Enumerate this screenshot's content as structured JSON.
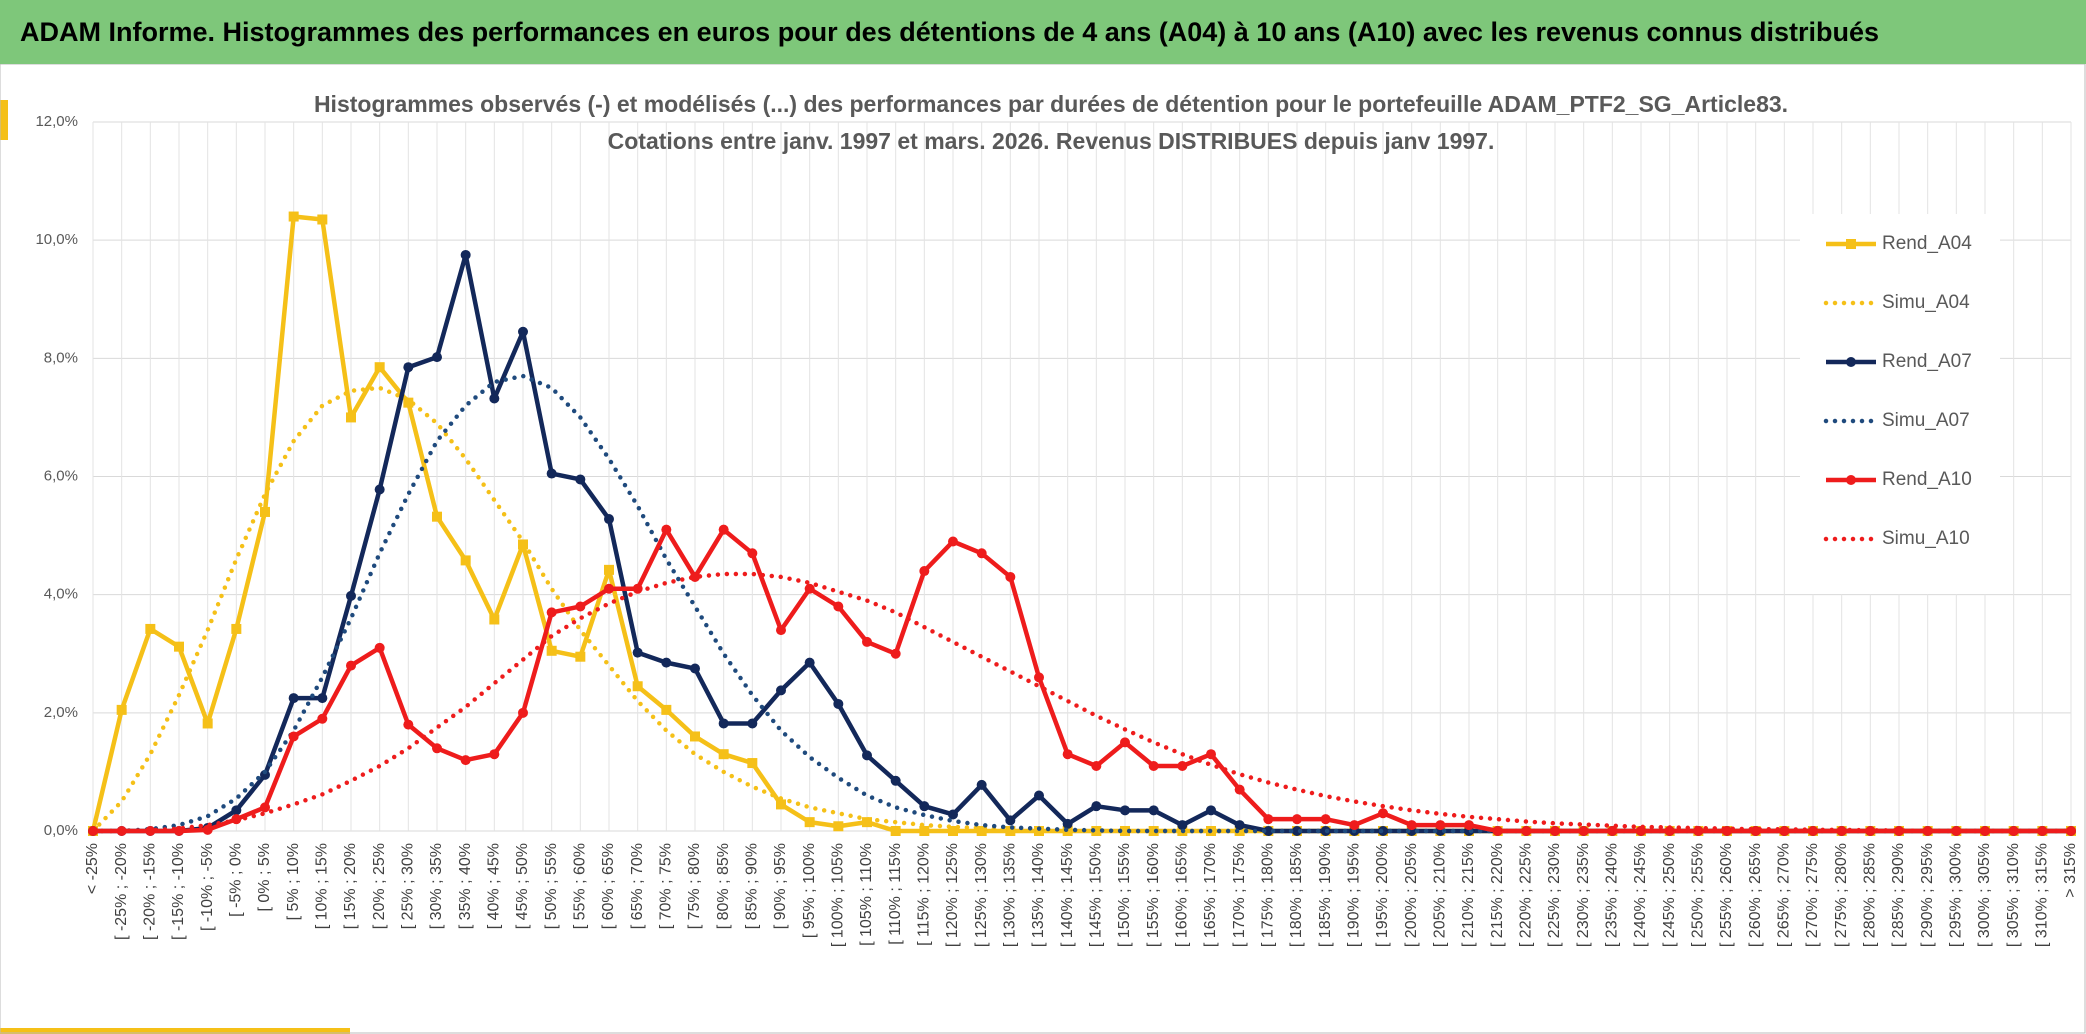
{
  "header": {
    "title": "ADAM Informe. Histogrammes des performances en euros pour des détentions de 4 ans (A04) à 10 ans (A10) avec les revenus connus distribués"
  },
  "chart_data": {
    "type": "line",
    "title": "Histogrammes observés (-) et modélisés (...) des performances par durées de détention pour le portefeuille ADAM_PTF2_SG_Article83.",
    "subtitle": "Cotations entre janv. 1997 et mars. 2026. Revenus DISTRIBUES depuis janv 1997.",
    "categories": [
      "< -25%",
      "[ -25% ; -20%",
      "[ -20% ; -15%",
      "[ -15% ; -10%",
      "[ -10% ; -5%",
      "[ -5% ; 0%",
      "[ 0% ; 5%",
      "[ 5% ; 10%",
      "[ 10% ; 15%",
      "[ 15% ; 20%",
      "[ 20% ; 25%",
      "[ 25% ; 30%",
      "[ 30% ; 35%",
      "[ 35% ; 40%",
      "[ 40% ; 45%",
      "[ 45% ; 50%",
      "[ 50% ; 55%",
      "[ 55% ; 60%",
      "[ 60% ; 65%",
      "[ 65% ; 70%",
      "[ 70% ; 75%",
      "[ 75% ; 80%",
      "[ 80% ; 85%",
      "[ 85% ; 90%",
      "[ 90% ; 95%",
      "[ 95% ; 100%",
      "[ 100% ; 105%",
      "[ 105% ; 110%",
      "[ 110% ; 115%",
      "[ 115% ; 120%",
      "[ 120% ; 125%",
      "[ 125% ; 130%",
      "[ 130% ; 135%",
      "[ 135% ; 140%",
      "[ 140% ; 145%",
      "[ 145% ; 150%",
      "[ 150% ; 155%",
      "[ 155% ; 160%",
      "[ 160% ; 165%",
      "[ 165% ; 170%",
      "[ 170% ; 175%",
      "[ 175% ; 180%",
      "[ 180% ; 185%",
      "[ 185% ; 190%",
      "[ 190% ; 195%",
      "[ 195% ; 200%",
      "[ 200% ; 205%",
      "[ 205% ; 210%",
      "[ 210% ; 215%",
      "[ 215% ; 220%",
      "[ 220% ; 225%",
      "[ 225% ; 230%",
      "[ 230% ; 235%",
      "[ 235% ; 240%",
      "[ 240% ; 245%",
      "[ 245% ; 250%",
      "[ 250% ; 255%",
      "[ 255% ; 260%",
      "[ 260% ; 265%",
      "[ 265% ; 270%",
      "[ 270% ; 275%",
      "[ 275% ; 280%",
      "[ 280% ; 285%",
      "[ 285% ; 290%",
      "[ 290% ; 295%",
      "[ 295% ; 300%",
      "[ 300% ; 305%",
      "[ 305% ; 310%",
      "[ 310% ; 315%",
      "> 315%"
    ],
    "series": [
      {
        "name": "Rend_A04",
        "color": "#f5c018",
        "style": "solid",
        "marker": "square",
        "values": [
          0,
          2.05,
          3.42,
          3.12,
          1.82,
          3.42,
          5.4,
          10.4,
          10.35,
          7.0,
          7.85,
          7.25,
          5.32,
          4.58,
          3.58,
          4.85,
          3.05,
          2.95,
          4.42,
          2.45,
          2.05,
          1.6,
          1.3,
          1.15,
          0.45,
          0.15,
          0.08,
          0.15,
          0,
          0,
          0,
          0,
          0,
          0,
          0,
          0,
          0,
          0,
          0,
          0,
          0,
          0,
          0,
          0,
          0,
          0,
          0,
          0,
          0,
          0,
          0,
          0,
          0,
          0,
          0,
          0,
          0,
          0,
          0,
          0,
          0,
          0,
          0,
          0,
          0,
          0,
          0,
          0,
          0,
          0
        ]
      },
      {
        "name": "Simu_A04",
        "color": "#f5c018",
        "style": "dotted",
        "values": [
          0,
          0.5,
          1.3,
          2.3,
          3.4,
          4.6,
          5.7,
          6.6,
          7.2,
          7.45,
          7.5,
          7.3,
          6.9,
          6.3,
          5.6,
          4.9,
          4.1,
          3.4,
          2.8,
          2.2,
          1.7,
          1.3,
          1.0,
          0.75,
          0.55,
          0.4,
          0.3,
          0.2,
          0.15,
          0.1,
          0.07,
          0.05,
          0.03,
          0.02,
          0.01,
          0,
          0,
          0,
          0,
          0,
          0,
          0,
          0,
          0,
          0,
          0,
          0,
          0,
          0,
          0,
          0,
          0,
          0,
          0,
          0,
          0,
          0,
          0,
          0,
          0,
          0,
          0,
          0,
          0,
          0,
          0,
          0,
          0,
          0,
          0
        ]
      },
      {
        "name": "Rend_A07",
        "color": "#13285a",
        "style": "solid",
        "marker": "circle",
        "values": [
          0,
          0,
          0,
          0,
          0.05,
          0.35,
          0.95,
          2.25,
          2.25,
          3.98,
          5.78,
          7.85,
          8.02,
          9.75,
          7.32,
          8.45,
          6.05,
          5.95,
          5.28,
          3.02,
          2.85,
          2.75,
          1.82,
          1.82,
          2.38,
          2.85,
          2.15,
          1.28,
          0.85,
          0.42,
          0.28,
          0.78,
          0.18,
          0.6,
          0.12,
          0.42,
          0.35,
          0.35,
          0.1,
          0.35,
          0.1,
          0,
          0,
          0,
          0,
          0,
          0,
          0,
          0,
          0,
          0,
          0,
          0,
          0,
          0,
          0,
          0,
          0,
          0,
          0,
          0,
          0,
          0,
          0,
          0,
          0,
          0,
          0,
          0,
          0
        ]
      },
      {
        "name": "Simu_A07",
        "color": "#1f4a7d",
        "style": "dotted",
        "values": [
          0,
          0,
          0.03,
          0.1,
          0.25,
          0.55,
          1.0,
          1.7,
          2.6,
          3.6,
          4.7,
          5.7,
          6.6,
          7.2,
          7.6,
          7.7,
          7.5,
          7.0,
          6.3,
          5.5,
          4.6,
          3.8,
          3.0,
          2.3,
          1.7,
          1.25,
          0.9,
          0.6,
          0.4,
          0.27,
          0.17,
          0.1,
          0.06,
          0.04,
          0.02,
          0.01,
          0,
          0,
          0,
          0,
          0,
          0,
          0,
          0,
          0,
          0,
          0,
          0,
          0,
          0,
          0,
          0,
          0,
          0,
          0,
          0,
          0,
          0,
          0,
          0,
          0,
          0,
          0,
          0,
          0,
          0,
          0,
          0,
          0,
          0
        ]
      },
      {
        "name": "Rend_A10",
        "color": "#ee1c1c",
        "style": "solid",
        "marker": "circle",
        "values": [
          0,
          0,
          0,
          0,
          0.02,
          0.2,
          0.4,
          1.6,
          1.9,
          2.8,
          3.1,
          1.8,
          1.4,
          1.2,
          1.3,
          2.0,
          3.7,
          3.8,
          4.1,
          4.1,
          5.1,
          4.3,
          5.1,
          4.7,
          3.4,
          4.1,
          3.8,
          3.2,
          3.0,
          4.4,
          4.9,
          4.7,
          4.3,
          2.6,
          1.3,
          1.1,
          1.5,
          1.1,
          1.1,
          1.3,
          0.7,
          0.2,
          0.2,
          0.2,
          0.1,
          0.3,
          0.1,
          0.1,
          0.1,
          0,
          0,
          0,
          0,
          0,
          0,
          0,
          0,
          0,
          0,
          0,
          0,
          0,
          0,
          0,
          0,
          0,
          0,
          0,
          0,
          0
        ]
      },
      {
        "name": "Simu_A10",
        "color": "#ee1c1c",
        "style": "dotted",
        "values": [
          0,
          0,
          0.01,
          0.04,
          0.1,
          0.18,
          0.3,
          0.45,
          0.62,
          0.85,
          1.1,
          1.4,
          1.75,
          2.1,
          2.5,
          2.9,
          3.3,
          3.6,
          3.85,
          4.05,
          4.2,
          4.3,
          4.35,
          4.35,
          4.3,
          4.2,
          4.05,
          3.9,
          3.7,
          3.45,
          3.2,
          2.95,
          2.7,
          2.45,
          2.2,
          1.95,
          1.72,
          1.5,
          1.3,
          1.12,
          0.96,
          0.82,
          0.7,
          0.59,
          0.5,
          0.42,
          0.35,
          0.29,
          0.24,
          0.2,
          0.16,
          0.13,
          0.11,
          0.09,
          0.07,
          0.06,
          0.05,
          0.04,
          0.03,
          0.03,
          0.02,
          0.02,
          0.01,
          0.01,
          0,
          0,
          0,
          0,
          0,
          0
        ]
      }
    ],
    "ylim": [
      0,
      12
    ],
    "yticks": [
      {
        "value": 0,
        "label": "0,0%"
      },
      {
        "value": 2,
        "label": "2,0%"
      },
      {
        "value": 4,
        "label": "4,0%"
      },
      {
        "value": 6,
        "label": "6,0%"
      },
      {
        "value": 8,
        "label": "8,0%"
      },
      {
        "value": 10,
        "label": "10,0%"
      },
      {
        "value": 12,
        "label": "12,0%"
      }
    ],
    "grid": true,
    "legend": "right"
  }
}
